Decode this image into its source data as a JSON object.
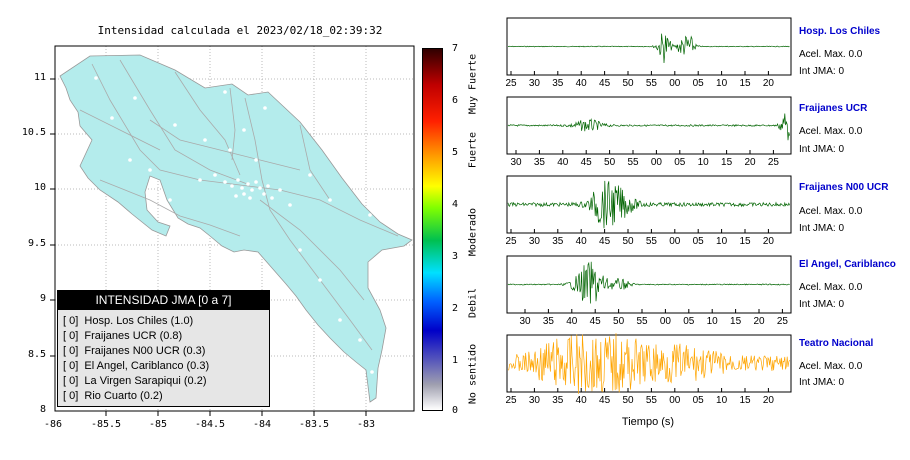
{
  "map": {
    "title": "Intensidad calculada el 2023/02/18_02:39:32",
    "x_ticks": [
      "-86",
      "-85.5",
      "-85",
      "-84.5",
      "-84",
      "-83.5",
      "-83"
    ],
    "y_ticks": [
      "11",
      "10.5",
      "10",
      "9.5",
      "9",
      "8.5",
      "8"
    ],
    "land_color": "#b4ecec",
    "legend": {
      "title": "INTENSIDAD JMA [0 a 7]",
      "items": [
        "[ 0]  Hosp. Los Chiles (1.0)",
        "[ 0]  Fraijanes UCR (0.8)",
        "[ 0]  Fraijanes N00 UCR (0.3)",
        "[ 0]  El Angel, Cariblanco (0.3)",
        "[ 0]  La Virgen Sarapiqui (0.2)",
        "[ 0]  Rio Cuarto (0.2)"
      ]
    }
  },
  "colorbar": {
    "ticks": [
      "7",
      "6",
      "5",
      "4",
      "3",
      "2",
      "1",
      "0"
    ],
    "categories": [
      "Muy Fuerte",
      "Fuerte",
      "Moderado",
      "Debil",
      "No sentido"
    ]
  },
  "seismograms": {
    "x_axis_label": "Tiempo (s)",
    "panels": [
      {
        "station": "Hosp. Los Chiles",
        "accel": "Acel. Max. 0.0",
        "jma": "Int JMA: 0",
        "color": "#006400",
        "ticks": [
          "25",
          "30",
          "35",
          "40",
          "45",
          "50",
          "55",
          "00",
          "05",
          "10",
          "15",
          "20"
        ]
      },
      {
        "station": "Fraijanes UCR",
        "accel": "Acel. Max. 0.0",
        "jma": "Int JMA: 0",
        "color": "#006400",
        "ticks": [
          "30",
          "35",
          "40",
          "45",
          "50",
          "55",
          "00",
          "05",
          "10",
          "15",
          "20",
          "25"
        ]
      },
      {
        "station": "Fraijanes N00 UCR",
        "accel": "Acel. Max. 0.0",
        "jma": "Int JMA: 0",
        "color": "#006400",
        "ticks": [
          "25",
          "30",
          "35",
          "40",
          "45",
          "50",
          "55",
          "00",
          "05",
          "10",
          "15",
          "20"
        ]
      },
      {
        "station": "El Angel, Cariblanco",
        "accel": "Acel. Max. 0.0",
        "jma": "Int JMA: 0",
        "color": "#006400",
        "ticks": [
          "30",
          "35",
          "40",
          "45",
          "50",
          "55",
          "00",
          "05",
          "10",
          "15",
          "20",
          "25"
        ]
      },
      {
        "station": "Teatro Nacional",
        "accel": "Acel. Max. 0.0",
        "jma": "Int JMA: 0",
        "color": "#ffa500",
        "ticks": [
          "25",
          "30",
          "35",
          "40",
          "45",
          "50",
          "55",
          "00",
          "05",
          "10",
          "15",
          "20"
        ]
      }
    ]
  }
}
